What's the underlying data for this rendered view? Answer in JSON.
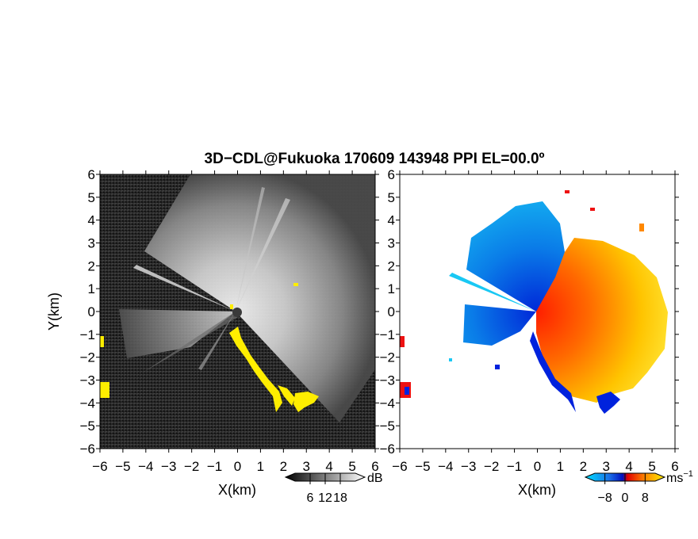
{
  "title": "3D−CDL@Fukuoka 170609 143948 PPI EL=00.0º",
  "chart_data": [
    {
      "type": "heatmap",
      "panel": "reflectivity",
      "title": "",
      "xlabel": "X(km)",
      "ylabel": "Y(km)",
      "xlim": [
        -6,
        6
      ],
      "ylim": [
        -6,
        6
      ],
      "x_ticks": [
        "−6",
        "−5",
        "−4",
        "−3",
        "−2",
        "−1",
        "0",
        "1",
        "2",
        "3",
        "4",
        "5",
        "6"
      ],
      "y_ticks": [
        "6",
        "5",
        "4",
        "3",
        "2",
        "1",
        "0",
        "−1",
        "−2",
        "−3",
        "−4",
        "−5",
        "−6"
      ],
      "colormap": "grayscale",
      "colorbar": {
        "unit": "dB",
        "ticks": [
          "6",
          "12",
          "18"
        ],
        "range": [
          0,
          24
        ]
      },
      "flag_color": "#ffee00",
      "background": "#2a2a2a"
    },
    {
      "type": "heatmap",
      "panel": "doppler_velocity",
      "title": "",
      "xlabel": "X(km)",
      "ylabel": "",
      "xlim": [
        -6,
        6
      ],
      "ylim": [
        -6,
        6
      ],
      "x_ticks": [
        "−6",
        "−5",
        "−4",
        "−3",
        "−2",
        "−1",
        "0",
        "1",
        "2",
        "3",
        "4",
        "5",
        "6"
      ],
      "colormap": "cyan-blue-red-orange-yellow",
      "colorbar": {
        "unit": "ms",
        "unit_exp": "−1",
        "ticks": [
          "−8",
          "0",
          "8"
        ],
        "range": [
          -12,
          12
        ]
      },
      "background": "#ffffff"
    }
  ],
  "colors": {
    "cyan": "#00c8f0",
    "blue": "#0033dd",
    "red": "#ff2200",
    "orange": "#ff8800",
    "yellow": "#ffee00",
    "flag_yellow": "#ffee00"
  }
}
